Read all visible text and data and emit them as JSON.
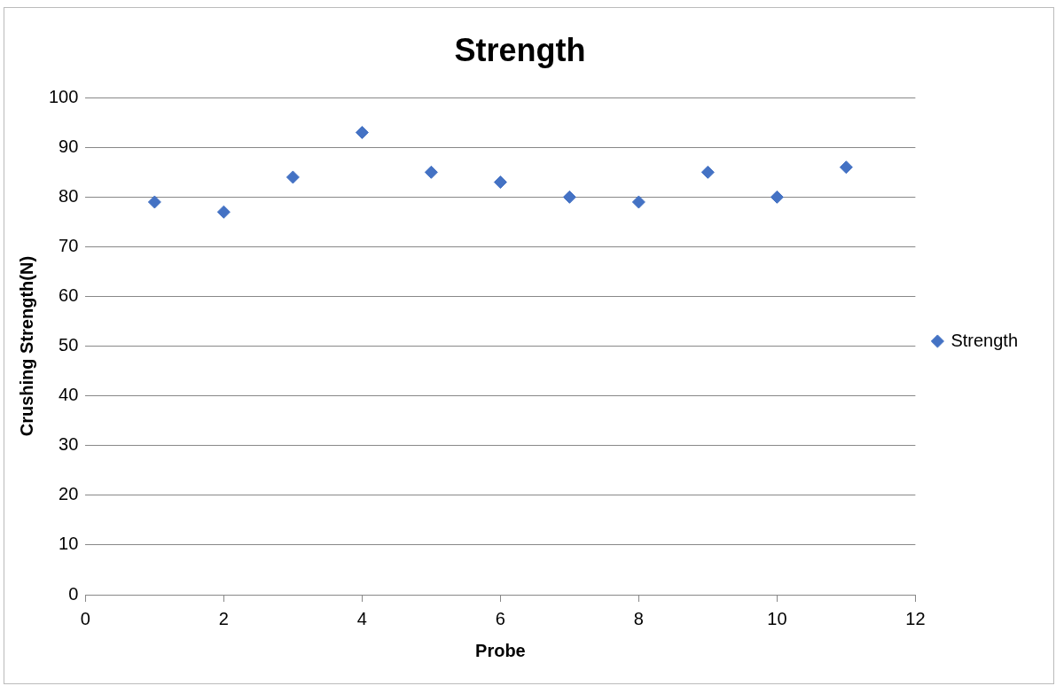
{
  "chart_data": {
    "type": "scatter",
    "title": "Strength",
    "xlabel": "Probe",
    "ylabel": "Crushing Strength(N)",
    "x": [
      1,
      2,
      3,
      4,
      5,
      6,
      7,
      8,
      9,
      10,
      11
    ],
    "series": [
      {
        "name": "Strength",
        "color": "#4472c4",
        "values": [
          79,
          77,
          84,
          93,
          85,
          83,
          80,
          79,
          85,
          80,
          86
        ]
      }
    ],
    "xlim": [
      0,
      12
    ],
    "xticks": [
      0,
      2,
      4,
      6,
      8,
      10,
      12
    ],
    "ylim": [
      0,
      100
    ],
    "yticks": [
      0,
      10,
      20,
      30,
      40,
      50,
      60,
      70,
      80,
      90,
      100
    ],
    "grid": "y",
    "legend": "right",
    "marker": "diamond"
  }
}
